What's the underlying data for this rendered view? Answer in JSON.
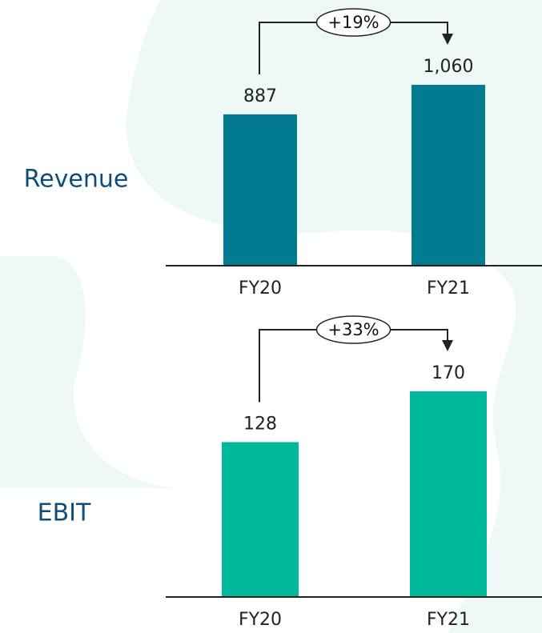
{
  "chart_data": [
    {
      "type": "bar",
      "title": "Revenue",
      "categories": [
        "FY20",
        "FY21"
      ],
      "values": [
        887,
        1060
      ],
      "value_labels": [
        "887",
        "1,060"
      ],
      "color": "#007b8f",
      "annotation": "+19%"
    },
    {
      "type": "bar",
      "title": "EBIT",
      "categories": [
        "FY20",
        "FY21"
      ],
      "values": [
        128,
        170
      ],
      "color": "#00b89a",
      "annotation": "+33%"
    }
  ]
}
